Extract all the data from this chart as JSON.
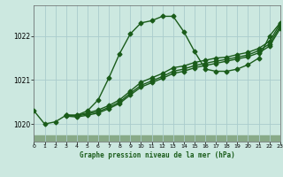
{
  "bg_color": "#cce8e0",
  "plot_bg_color": "#cce8e0",
  "grid_color": "#aacccc",
  "line_color": "#1a5c1a",
  "bottom_color": "#88aa88",
  "title": "Graphe pression niveau de la mer (hPa)",
  "xlim": [
    0,
    23
  ],
  "ylim": [
    1019.6,
    1022.7
  ],
  "yticks": [
    1020,
    1021,
    1022
  ],
  "xticks": [
    0,
    1,
    2,
    3,
    4,
    5,
    6,
    7,
    8,
    9,
    10,
    11,
    12,
    13,
    14,
    15,
    16,
    17,
    18,
    19,
    20,
    21,
    22,
    23
  ],
  "series": [
    {
      "x": [
        0,
        1,
        2,
        3,
        4,
        5,
        6,
        7,
        8,
        9,
        10,
        11,
        12,
        13,
        14,
        15,
        16,
        17,
        18,
        19,
        20,
        21,
        22,
        23
      ],
      "y": [
        1020.3,
        1020.0,
        1020.05,
        1020.2,
        1020.2,
        1020.3,
        1020.55,
        1021.05,
        1021.6,
        1022.05,
        1022.3,
        1022.35,
        1022.45,
        1022.45,
        1022.1,
        1021.65,
        1021.25,
        1021.2,
        1021.2,
        1021.25,
        1021.35,
        1021.5,
        1022.0,
        1022.3
      ],
      "marker": "D",
      "markersize": 2.5,
      "linewidth": 1.0
    },
    {
      "x": [
        3,
        4,
        5,
        6,
        7,
        8,
        9,
        10,
        11,
        12,
        13,
        14,
        15,
        16,
        17,
        18,
        19,
        20,
        21,
        22,
        23
      ],
      "y": [
        1020.2,
        1020.2,
        1020.25,
        1020.32,
        1020.42,
        1020.55,
        1020.75,
        1020.95,
        1021.05,
        1021.15,
        1021.28,
        1021.32,
        1021.4,
        1021.45,
        1021.5,
        1021.52,
        1021.58,
        1021.63,
        1021.72,
        1021.88,
        1022.28
      ],
      "marker": "D",
      "markersize": 2.5,
      "linewidth": 1.0
    },
    {
      "x": [
        3,
        4,
        5,
        6,
        7,
        8,
        9,
        10,
        11,
        12,
        13,
        14,
        15,
        16,
        17,
        18,
        19,
        20,
        21,
        22,
        23
      ],
      "y": [
        1020.2,
        1020.18,
        1020.23,
        1020.28,
        1020.38,
        1020.5,
        1020.7,
        1020.88,
        1020.98,
        1021.08,
        1021.2,
        1021.25,
        1021.33,
        1021.38,
        1021.43,
        1021.47,
        1021.52,
        1021.57,
        1021.67,
        1021.82,
        1022.22
      ],
      "marker": "D",
      "markersize": 2.5,
      "linewidth": 1.0
    },
    {
      "x": [
        3,
        4,
        5,
        6,
        7,
        8,
        9,
        10,
        11,
        12,
        13,
        14,
        15,
        16,
        17,
        18,
        19,
        20,
        21,
        22,
        23
      ],
      "y": [
        1020.18,
        1020.16,
        1020.2,
        1020.25,
        1020.35,
        1020.47,
        1020.66,
        1020.84,
        1020.94,
        1021.04,
        1021.15,
        1021.2,
        1021.28,
        1021.33,
        1021.38,
        1021.43,
        1021.48,
        1021.53,
        1021.62,
        1021.77,
        1022.17
      ],
      "marker": "D",
      "markersize": 2.5,
      "linewidth": 1.0
    }
  ]
}
